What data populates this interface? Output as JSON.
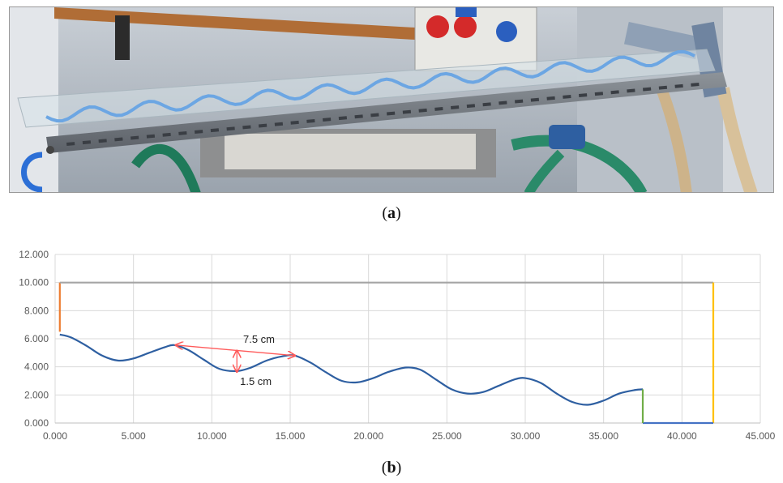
{
  "captions": {
    "a_open": "(",
    "a_letter": "a",
    "a_close": ")",
    "b_open": "(",
    "b_letter": "b",
    "b_close": ")"
  },
  "photo": {
    "subject": "wavy-channel-flume-apparatus"
  },
  "chart_data": {
    "type": "line",
    "title": "",
    "xlabel": "",
    "ylabel": "",
    "xlim": [
      0,
      45
    ],
    "ylim": [
      0,
      12
    ],
    "x_ticks": [
      "0.000",
      "5.000",
      "10.000",
      "15.000",
      "20.000",
      "25.000",
      "30.000",
      "35.000",
      "40.000",
      "45.000"
    ],
    "y_ticks": [
      "0.000",
      "2.000",
      "4.000",
      "6.000",
      "8.000",
      "10.000",
      "12.000"
    ],
    "grid": true,
    "legend": "none",
    "series": [
      {
        "color": "#2e5fa1",
        "x": [
          0.3,
          1.0,
          2.0,
          3.0,
          4.0,
          5.0,
          6.0,
          7.0,
          7.6,
          8.5,
          9.5,
          10.5,
          11.6,
          12.5,
          13.5,
          14.5,
          15.3,
          16.3,
          17.3,
          18.3,
          19.3,
          20.3,
          21.3,
          22.4,
          23.3,
          24.3,
          25.3,
          26.3,
          27.3,
          28.3,
          29.3,
          30.0,
          31.0,
          32.0,
          33.0,
          34.0,
          35.0,
          36.0,
          37.0,
          37.5
        ],
        "y": [
          6.3,
          6.1,
          5.5,
          4.8,
          4.45,
          4.6,
          5.0,
          5.4,
          5.55,
          5.2,
          4.5,
          3.85,
          3.7,
          3.95,
          4.45,
          4.75,
          4.8,
          4.3,
          3.6,
          3.0,
          2.9,
          3.2,
          3.65,
          3.95,
          3.8,
          3.1,
          2.4,
          2.1,
          2.2,
          2.65,
          3.1,
          3.2,
          2.85,
          2.1,
          1.5,
          1.3,
          1.6,
          2.1,
          2.35,
          2.4
        ]
      },
      {
        "color": "#ed7d31",
        "x": [
          0.3,
          0.3
        ],
        "y": [
          6.5,
          10.0
        ]
      },
      {
        "color": "#a5a5a5",
        "x": [
          0.3,
          42.0
        ],
        "y": [
          10.0,
          10.0
        ]
      },
      {
        "color": "#ffc000",
        "x": [
          42.0,
          42.0
        ],
        "y": [
          10.0,
          0.0
        ]
      },
      {
        "color": "#4472c4",
        "x": [
          37.5,
          42.0
        ],
        "y": [
          0.0,
          0.0
        ]
      },
      {
        "color": "#70ad47",
        "x": [
          37.5,
          37.5
        ],
        "y": [
          2.4,
          0.0
        ]
      }
    ],
    "annotations": {
      "wavelength_label": "7.5 cm",
      "wavelength_from": [
        7.7,
        5.55
      ],
      "wavelength_to": [
        15.3,
        4.8
      ],
      "amplitude_label": "1.5 cm",
      "amplitude_x": 11.6,
      "amplitude_from": 5.15,
      "amplitude_to": 3.65,
      "arrow_color": "#ff5a5a"
    }
  }
}
